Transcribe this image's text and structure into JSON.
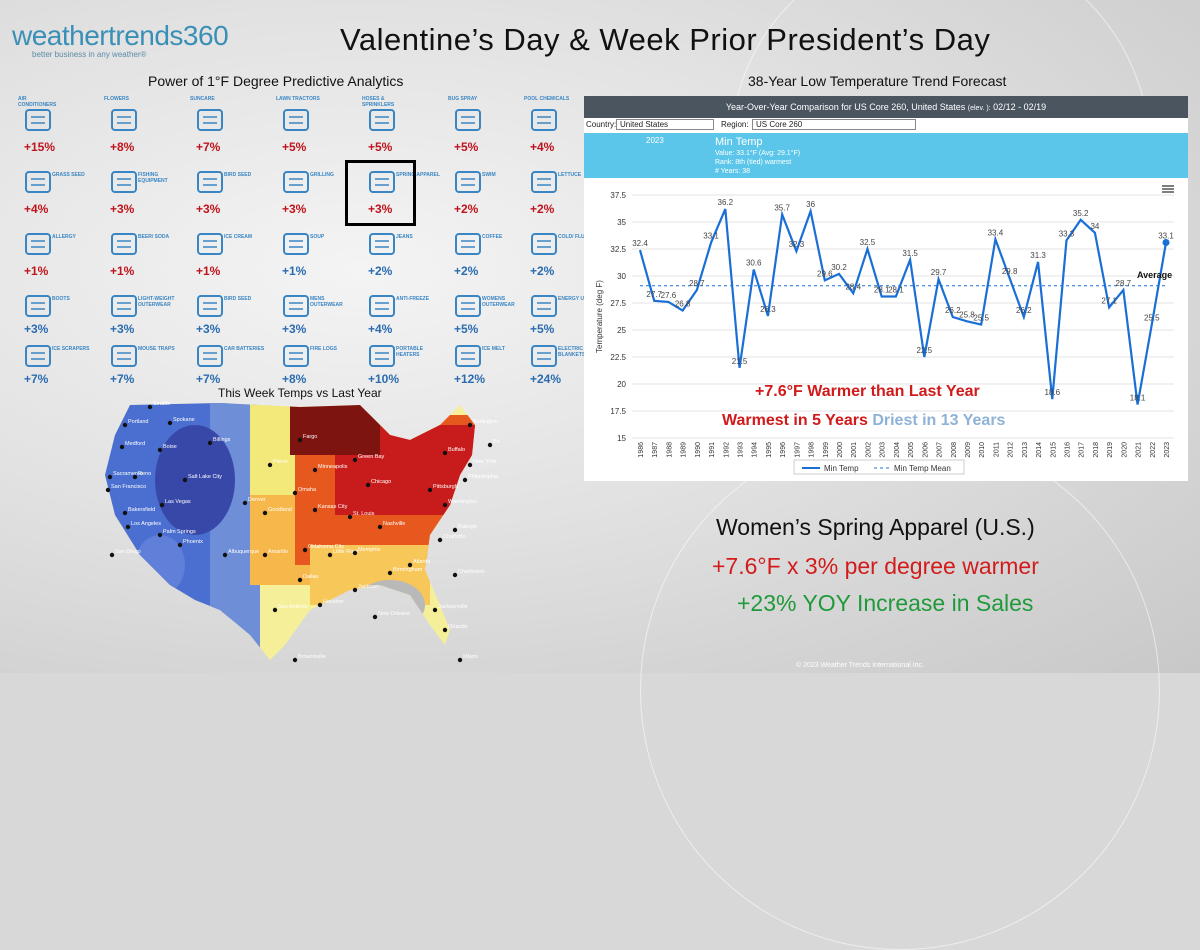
{
  "logo": {
    "brand": "weathertrends360",
    "tagline": "better business in any weather®"
  },
  "title": "Valentine’s Day & Week Prior President’s Day",
  "left_subtitle": "Power of 1°F Degree Predictive Analytics",
  "right_subtitle": "38-Year Low Temperature Trend Forecast",
  "map_title": "This Week Temps vs Last Year",
  "categories": [
    {
      "label": "AIR CONDITIONERS",
      "pct": "+15%",
      "icon": "air-conditioner-icon",
      "color": "red"
    },
    {
      "label": "FLOWERS",
      "pct": "+8%",
      "icon": "flowers-icon",
      "color": "red"
    },
    {
      "label": "SUNCARE",
      "pct": "+7%",
      "icon": "suncare-icon",
      "color": "red"
    },
    {
      "label": "LAWN TRACTORS",
      "pct": "+5%",
      "icon": "lawn-tractor-icon",
      "color": "red"
    },
    {
      "label": "HOSES & SPRINKLERS",
      "pct": "+5%",
      "icon": "sprinkler-icon",
      "color": "red"
    },
    {
      "label": "BUG SPRAY",
      "pct": "+5%",
      "icon": "bug-spray-icon",
      "color": "red"
    },
    {
      "label": "POOL CHEMICALS",
      "pct": "+4%",
      "icon": "pool-chemicals-icon",
      "color": "red"
    },
    {
      "label": "GRASS SEED",
      "pct": "+4%",
      "icon": "grass-seed-icon",
      "color": "red"
    },
    {
      "label": "FISHING EQUIPMENT",
      "pct": "+3%",
      "icon": "fishing-icon",
      "color": "red"
    },
    {
      "label": "BIRD SEED",
      "pct": "+3%",
      "icon": "bird-seed-icon",
      "color": "red"
    },
    {
      "label": "GRILLING",
      "pct": "+3%",
      "icon": "grill-icon",
      "color": "red"
    },
    {
      "label": "SPRING APPAREL",
      "pct": "+3%",
      "icon": "apparel-icon",
      "color": "red"
    },
    {
      "label": "SWIM",
      "pct": "+2%",
      "icon": "swimsuit-icon",
      "color": "red"
    },
    {
      "label": "LETTUCE",
      "pct": "+2%",
      "icon": "lettuce-icon",
      "color": "red"
    },
    {
      "label": "ALLERGY",
      "pct": "+1%",
      "icon": "allergy-icon",
      "color": "red"
    },
    {
      "label": "BEER/ SODA",
      "pct": "+1%",
      "icon": "beer-icon",
      "color": "red"
    },
    {
      "label": "ICE CREAM",
      "pct": "+1%",
      "icon": "ice-cream-icon",
      "color": "red"
    },
    {
      "label": "SOUP",
      "pct": "+1%",
      "icon": "soup-icon",
      "color": "blue"
    },
    {
      "label": "JEANS",
      "pct": "+2%",
      "icon": "jeans-icon",
      "color": "blue"
    },
    {
      "label": "COFFEE",
      "pct": "+2%",
      "icon": "coffee-icon",
      "color": "blue"
    },
    {
      "label": "COLD/ FLU",
      "pct": "+2%",
      "icon": "cold-flu-icon",
      "color": "blue"
    },
    {
      "label": "BOOTS",
      "pct": "+3%",
      "icon": "boots-icon",
      "color": "blue"
    },
    {
      "label": "LIGHT-WEIGHT OUTERWEAR",
      "pct": "+3%",
      "icon": "light-outerwear-icon",
      "color": "blue"
    },
    {
      "label": "BIRD SEED",
      "pct": "+3%",
      "icon": "bird-seed-icon",
      "color": "blue"
    },
    {
      "label": "MENS OUTERWEAR",
      "pct": "+3%",
      "icon": "mens-outerwear-icon",
      "color": "blue"
    },
    {
      "label": "ANTI-FREEZE",
      "pct": "+4%",
      "icon": "antifreeze-icon",
      "color": "blue"
    },
    {
      "label": "WOMENS OUTERWEAR",
      "pct": "+5%",
      "icon": "womens-outerwear-icon",
      "color": "blue"
    },
    {
      "label": "ENERGY USAGE",
      "pct": "+5%",
      "icon": "energy-icon",
      "color": "blue"
    },
    {
      "label": "ICE SCRAPERS",
      "pct": "+7%",
      "icon": "ice-scraper-icon",
      "color": "blue"
    },
    {
      "label": "MOUSE TRAPS",
      "pct": "+7%",
      "icon": "mouse-trap-icon",
      "color": "blue"
    },
    {
      "label": "CAR BATTERIES",
      "pct": "+7%",
      "icon": "car-battery-icon",
      "color": "blue"
    },
    {
      "label": "FIRE LOGS",
      "pct": "+8%",
      "icon": "fire-logs-icon",
      "color": "blue"
    },
    {
      "label": "PORTABLE HEATERS",
      "pct": "+10%",
      "icon": "heater-icon",
      "color": "blue"
    },
    {
      "label": "ICE MELT",
      "pct": "+12%",
      "icon": "ice-melt-icon",
      "color": "blue"
    },
    {
      "label": "ELECTRIC BLANKETS",
      "pct": "+24%",
      "icon": "electric-blanket-icon",
      "color": "blue"
    }
  ],
  "map_cities": [
    "Seattle",
    "Spokane",
    "Portland",
    "Medford",
    "Boise",
    "Billings",
    "Sacramento",
    "Reno",
    "San Francisco",
    "Salt Lake City",
    "Las Vegas",
    "Bakersfield",
    "Los Angeles",
    "Palm Springs",
    "San Diego",
    "Phoenix",
    "Albuquerque",
    "Denver",
    "Pierre",
    "Omaha",
    "Goodland",
    "Kansas City",
    "Amarillo",
    "Oklahoma City",
    "Dallas",
    "San Antonio",
    "Houston",
    "Brownsville",
    "Fargo",
    "Minneapolis",
    "Green Bay",
    "Chicago",
    "St. Louis",
    "Nashville",
    "Little Rock",
    "Memphis",
    "Jackson",
    "New Orleans",
    "Birmingham",
    "Atlanta",
    "Charlotte",
    "Charleston",
    "Raleigh",
    "Jacksonville",
    "Orlando",
    "Miami",
    "Buffalo",
    "Pittsburgh",
    "Washington",
    "Philadelphia",
    "New York",
    "Boston",
    "Burlington"
  ],
  "chart": {
    "header": "Year-Over-Year Comparison for US Core 260, United States",
    "header_elev": "(elev. ):",
    "header_dates": "02/12 - 02/19",
    "country_label": "Country:",
    "country_value": "United States",
    "region_label": "Region:",
    "region_value": "US Core 260",
    "info_year": "2023",
    "info_title": "Min Temp",
    "info_value": "Value: 33.1°F (Avg: 29.1°F)",
    "info_rank": "Rank: 8th (tied) warmest",
    "info_years": "# Years: 38",
    "menu_icon": "hamburger-menu-icon",
    "avg_label": "Average",
    "overlay_line1": "+7.6°F Warmer than Last Year",
    "overlay_line2a": "Warmest in 5 Years",
    "overlay_line2b": "Driest in 13 Years"
  },
  "chart_data": {
    "type": "line",
    "title": "Year-Over-Year Comparison for US Core 260, United States 02/12 - 02/19",
    "xlabel": "",
    "ylabel": "Temperature (deg F)",
    "ylim": [
      15,
      37.5
    ],
    "yticks": [
      "15",
      "17.5",
      "20",
      "22.5",
      "25",
      "27.5",
      "30",
      "32.5",
      "35",
      "37.5"
    ],
    "x": [
      "1986",
      "1987",
      "1988",
      "1989",
      "1990",
      "1991",
      "1992",
      "1993",
      "1994",
      "1995",
      "1996",
      "1997",
      "1998",
      "1999",
      "2000",
      "2001",
      "2002",
      "2003",
      "2004",
      "2005",
      "2006",
      "2007",
      "2008",
      "2009",
      "2010",
      "2011",
      "2012",
      "2013",
      "2014",
      "2015",
      "2016",
      "2017",
      "2018",
      "2019",
      "2020",
      "2021",
      "2022",
      "2023"
    ],
    "series": [
      {
        "name": "Min Temp",
        "values": [
          32.4,
          27.7,
          27.6,
          26.8,
          28.7,
          33.1,
          36.2,
          21.5,
          30.6,
          26.3,
          35.7,
          32.3,
          36.0,
          29.6,
          30.2,
          28.4,
          32.5,
          28.1,
          28.1,
          31.5,
          22.5,
          29.7,
          26.2,
          25.8,
          25.5,
          33.4,
          29.8,
          26.2,
          31.3,
          18.6,
          33.3,
          35.2,
          34.0,
          27.1,
          28.7,
          18.1,
          25.5,
          33.1
        ]
      },
      {
        "name": "Min Temp Mean",
        "values": [
          29.1,
          29.1,
          29.1,
          29.1,
          29.1,
          29.1,
          29.1,
          29.1,
          29.1,
          29.1,
          29.1,
          29.1,
          29.1,
          29.1,
          29.1,
          29.1,
          29.1,
          29.1,
          29.1,
          29.1,
          29.1,
          29.1,
          29.1,
          29.1,
          29.1,
          29.1,
          29.1,
          29.1,
          29.1,
          29.1,
          29.1,
          29.1,
          29.1,
          29.1,
          29.1,
          29.1,
          29.1,
          29.1
        ]
      }
    ],
    "legend": [
      "Min Temp",
      "Min Temp Mean"
    ],
    "legend_position": "bottom",
    "colors": {
      "line": "#1a6fd6",
      "mean": "#1a6fd6"
    }
  },
  "bottom": {
    "line1": "Women’s Spring Apparel (U.S.)",
    "line2": "+7.6°F x 3% per degree warmer",
    "line3": "+23% YOY Increase in Sales"
  },
  "copyright": "© 2023 Weather Trends International Inc."
}
